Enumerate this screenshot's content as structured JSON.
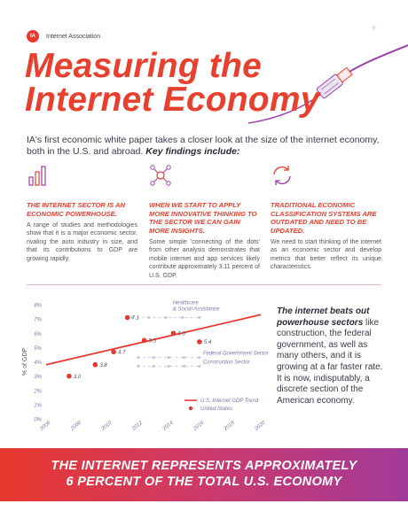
{
  "header": {
    "logo_text": "IA",
    "org_name": "Internet Association"
  },
  "title": {
    "line1": "Measuring the",
    "line2": "Internet Economy"
  },
  "intro": {
    "text": "IA's first economic white paper takes a closer look at the size of the internet economy, both in the U.S. and abroad.",
    "emphasis": "Key findings include:"
  },
  "findings": [
    {
      "icon": "bar-chart-icon",
      "heading": "The internet sector is an economic powerhouse.",
      "body": "A range of studies and methodologies show that it is a major economic sector, rivaling the auto industry in size, and that its contributions to GDP are growing rapidly."
    },
    {
      "icon": "network-nodes-icon",
      "heading": "When we start to apply more innovative thinking to the sector we can gain more insights.",
      "body": "Some simple 'connecting of the dots' from other analysis demonstrates that mobile internet and app services likely contribute approximately 3.11 percent of U.S. GDP."
    },
    {
      "icon": "refresh-arrows-icon",
      "heading": "Traditional economic classification systems are outdated and need to be updated.",
      "body": "We need to start thinking of the internet as an economic sector and develop metrics that better reflect its unique characteristics."
    }
  ],
  "chart_data": {
    "type": "scatter",
    "ylabel": "% of GDP",
    "ylim": [
      0,
      8
    ],
    "yticks": [
      "0%",
      "1%",
      "2%",
      "3%",
      "4%",
      "5%",
      "6%",
      "7%",
      "8%"
    ],
    "xlim": [
      2006,
      2020
    ],
    "xticks": [
      "2006",
      "2008",
      "2010",
      "2012",
      "2014",
      "2016",
      "2018",
      "2020"
    ],
    "points": [
      {
        "x": 2007.5,
        "y": 3.0,
        "label": "3.0"
      },
      {
        "x": 2009.2,
        "y": 3.8,
        "label": "3.8"
      },
      {
        "x": 2010.4,
        "y": 4.7,
        "label": "4.7"
      },
      {
        "x": 2011.3,
        "y": 7.1,
        "label": "7.1"
      },
      {
        "x": 2012.4,
        "y": 5.5,
        "label": "5.5"
      },
      {
        "x": 2014.3,
        "y": 6.0,
        "label": "6.0"
      },
      {
        "x": 2016.0,
        "y": 5.4,
        "label": "5.4"
      }
    ],
    "trend": {
      "name": "U.S. Internet GDP Trend",
      "x": [
        2006,
        2020
      ],
      "y": [
        3.8,
        7.3
      ],
      "color": "#e8382e"
    },
    "point_series_name": "United States",
    "reference_lines": [
      {
        "name": "Healthcare & Social Assistance",
        "label_lines": [
          "Healthcare",
          "& Social Assistance"
        ],
        "y": 7.1,
        "x": [
          2011.6,
          2016
        ]
      },
      {
        "name": "Federal Government Sector",
        "label_lines": [
          "Federal Government Sector"
        ],
        "y": 4.3,
        "x": [
          2012,
          2016
        ]
      },
      {
        "name": "Construction Sector",
        "label_lines": [
          "Construction Sector"
        ],
        "y": 3.7,
        "x": [
          2012,
          2016
        ]
      }
    ],
    "legend_position": "bottom-right",
    "colors": {
      "point": "#e8382e",
      "reference": "#c8c4e2",
      "axis_text": "#7a78a8"
    }
  },
  "side_note": {
    "emphasis": "The internet beats out powerhouse sectors",
    "text": " like construction, the federal government, as well as many others, and it is growing at a far faster rate. It is now, indisputably, a discrete section of the American economy."
  },
  "banner": {
    "line1": "The internet represents approximately",
    "line2": "6 percent of the total U.S. economy"
  }
}
